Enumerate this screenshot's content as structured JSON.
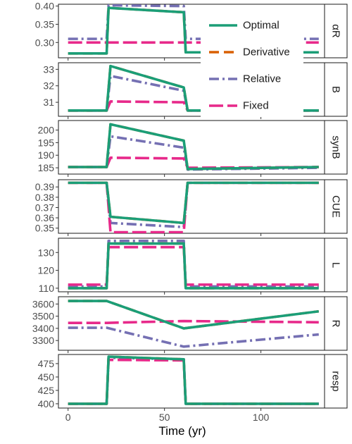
{
  "chart_data": {
    "type": "line",
    "title": "",
    "xlabel": "Time (yr)",
    "xlim": [
      -5,
      133
    ],
    "x_ticks": [
      0,
      50,
      100
    ],
    "x_tick_labels": [
      "0",
      "50",
      "100"
    ],
    "legend": {
      "placement": "inside-top-right",
      "entries": [
        {
          "series": "Optimal",
          "label": "Optimal",
          "color": "#1b9e77",
          "dash": "solid"
        },
        {
          "series": "Derivative",
          "label": "Derivative",
          "color": "#d95f02",
          "dash": "dashed"
        },
        {
          "series": "Relative",
          "label": "Relative",
          "color": "#7570b3",
          "dash": "dotdash"
        },
        {
          "series": "Fixed",
          "label": "Fixed",
          "color": "#e7298a",
          "dash": "longdash"
        }
      ]
    },
    "panels": [
      {
        "strip": "αR",
        "ylim": [
          0.258,
          0.405
        ],
        "y_ticks": [
          0.3,
          0.35,
          0.4
        ],
        "y_tick_labels": [
          "0.30",
          "0.35",
          "0.40"
        ],
        "series": {
          "Optimal": [
            [
              0,
              0.27
            ],
            [
              20,
              0.27
            ],
            [
              21,
              0.395
            ],
            [
              60,
              0.383
            ],
            [
              61,
              0.273
            ],
            [
              130,
              0.273
            ]
          ],
          "Derivative": [
            [
              0,
              0.27
            ],
            [
              20,
              0.27
            ],
            [
              21,
              0.395
            ],
            [
              60,
              0.383
            ],
            [
              61,
              0.273
            ],
            [
              130,
              0.273
            ]
          ],
          "Relative": [
            [
              0,
              0.31
            ],
            [
              20,
              0.31
            ],
            [
              21,
              0.402
            ],
            [
              60,
              0.4
            ],
            [
              61,
              0.31
            ],
            [
              130,
              0.31
            ]
          ],
          "Fixed": [
            [
              0,
              0.3
            ],
            [
              130,
              0.3
            ]
          ]
        }
      },
      {
        "strip": "B",
        "ylim": [
          30.15,
          33.4
        ],
        "y_ticks": [
          31,
          32,
          33
        ],
        "y_tick_labels": [
          "31",
          "32",
          "33"
        ],
        "series": {
          "Optimal": [
            [
              0,
              30.5
            ],
            [
              20,
              30.5
            ],
            [
              22,
              33.2
            ],
            [
              60,
              31.9
            ],
            [
              62,
              30.5
            ],
            [
              130,
              30.5
            ]
          ],
          "Derivative": [
            [
              0,
              30.5
            ],
            [
              20,
              30.5
            ],
            [
              22,
              33.2
            ],
            [
              60,
              31.9
            ],
            [
              62,
              30.5
            ],
            [
              130,
              30.5
            ]
          ],
          "Relative": [
            [
              0,
              30.5
            ],
            [
              20,
              30.5
            ],
            [
              22,
              32.6
            ],
            [
              60,
              31.7
            ],
            [
              62,
              30.5
            ],
            [
              130,
              30.5
            ]
          ],
          "Fixed": [
            [
              0,
              30.5
            ],
            [
              20,
              30.5
            ],
            [
              22,
              31.05
            ],
            [
              60,
              31.0
            ],
            [
              62,
              30.5
            ],
            [
              130,
              30.5
            ]
          ]
        }
      },
      {
        "strip": "synB",
        "ylim": [
          182.5,
          203.8
        ],
        "y_ticks": [
          185,
          190,
          195,
          200
        ],
        "y_tick_labels": [
          "185",
          "190",
          "195",
          "200"
        ],
        "series": {
          "Optimal": [
            [
              0,
              185.3
            ],
            [
              20,
              185.3
            ],
            [
              22,
              202.3
            ],
            [
              60,
              195.8
            ],
            [
              62,
              184.5
            ],
            [
              130,
              185.3
            ]
          ],
          "Derivative": [
            [
              0,
              185.3
            ],
            [
              20,
              185.3
            ],
            [
              22,
              202.3
            ],
            [
              60,
              195.8
            ],
            [
              62,
              184.5
            ],
            [
              130,
              185.3
            ]
          ],
          "Relative": [
            [
              0,
              185.3
            ],
            [
              20,
              185.3
            ],
            [
              22,
              197.5
            ],
            [
              60,
              193.0
            ],
            [
              62,
              184.3
            ],
            [
              130,
              185.0
            ]
          ],
          "Fixed": [
            [
              0,
              185.3
            ],
            [
              20,
              185.3
            ],
            [
              22,
              189.0
            ],
            [
              60,
              188.7
            ],
            [
              62,
              185.0
            ],
            [
              130,
              185.3
            ]
          ]
        }
      },
      {
        "strip": "CUE",
        "ylim": [
          0.345,
          0.397
        ],
        "y_ticks": [
          0.35,
          0.36,
          0.37,
          0.38,
          0.39
        ],
        "y_tick_labels": [
          "0.35",
          "0.36",
          "0.37",
          "0.38",
          "0.39"
        ],
        "series": {
          "Optimal": [
            [
              0,
              0.394
            ],
            [
              20,
              0.394
            ],
            [
              22,
              0.361
            ],
            [
              60,
              0.355
            ],
            [
              62,
              0.394
            ],
            [
              130,
              0.394
            ]
          ],
          "Derivative": [
            [
              0,
              0.394
            ],
            [
              20,
              0.394
            ],
            [
              22,
              0.361
            ],
            [
              60,
              0.355
            ],
            [
              62,
              0.394
            ],
            [
              130,
              0.394
            ]
          ],
          "Relative": [
            [
              0,
              0.394
            ],
            [
              20,
              0.394
            ],
            [
              22,
              0.355
            ],
            [
              60,
              0.351
            ],
            [
              62,
              0.394
            ],
            [
              130,
              0.394
            ]
          ],
          "Fixed": [
            [
              0,
              0.394
            ],
            [
              20,
              0.394
            ],
            [
              22,
              0.346
            ],
            [
              60,
              0.346
            ],
            [
              62,
              0.394
            ],
            [
              130,
              0.394
            ]
          ]
        }
      },
      {
        "strip": "L",
        "ylim": [
          108,
          138
        ],
        "y_ticks": [
          110,
          120,
          130
        ],
        "y_tick_labels": [
          "110",
          "120",
          "130"
        ],
        "series": {
          "Optimal": [
            [
              0,
              110
            ],
            [
              20,
              110
            ],
            [
              21,
              135
            ],
            [
              60,
              135
            ],
            [
              61,
              110
            ],
            [
              130,
              110
            ]
          ],
          "Derivative": [
            [
              0,
              110
            ],
            [
              20,
              110
            ],
            [
              21,
              135
            ],
            [
              60,
              135
            ],
            [
              61,
              110
            ],
            [
              130,
              110
            ]
          ],
          "Relative": [
            [
              0,
              111
            ],
            [
              20,
              111
            ],
            [
              21,
              136.5
            ],
            [
              60,
              136.5
            ],
            [
              61,
              111
            ],
            [
              130,
              111
            ]
          ],
          "Fixed": [
            [
              0,
              112
            ],
            [
              20,
              112
            ],
            [
              21,
              133
            ],
            [
              60,
              133
            ],
            [
              61,
              112
            ],
            [
              130,
              112
            ]
          ]
        }
      },
      {
        "strip": "R",
        "ylim": [
          3220,
          3660
        ],
        "y_ticks": [
          3300,
          3400,
          3500,
          3600
        ],
        "y_tick_labels": [
          "3300",
          "3400",
          "3500",
          "3600"
        ],
        "series": {
          "Optimal": [
            [
              0,
              3625
            ],
            [
              20,
              3625
            ],
            [
              60,
              3400
            ],
            [
              130,
              3540
            ]
          ],
          "Derivative": [
            [
              0,
              3625
            ],
            [
              20,
              3625
            ],
            [
              60,
              3400
            ],
            [
              130,
              3540
            ]
          ],
          "Relative": [
            [
              0,
              3405
            ],
            [
              20,
              3405
            ],
            [
              60,
              3250
            ],
            [
              130,
              3350
            ]
          ],
          "Fixed": [
            [
              0,
              3445
            ],
            [
              20,
              3445
            ],
            [
              60,
              3460
            ],
            [
              130,
              3450
            ]
          ]
        }
      },
      {
        "strip": "resp",
        "ylim": [
          392,
          492
        ],
        "y_ticks": [
          400,
          425,
          450,
          475
        ],
        "y_tick_labels": [
          "400",
          "425",
          "450",
          "475"
        ],
        "series": {
          "Optimal": [
            [
              0,
              400
            ],
            [
              20,
              400
            ],
            [
              21,
              488
            ],
            [
              60,
              483
            ],
            [
              61,
              400
            ],
            [
              130,
              400
            ]
          ],
          "Derivative": [
            [
              0,
              400
            ],
            [
              20,
              400
            ],
            [
              21,
              488
            ],
            [
              60,
              483
            ],
            [
              61,
              400
            ],
            [
              130,
              400
            ]
          ],
          "Relative": [
            [
              0,
              400
            ],
            [
              20,
              400
            ],
            [
              21,
              486
            ],
            [
              60,
              483
            ],
            [
              61,
              400
            ],
            [
              130,
              400
            ]
          ],
          "Fixed": [
            [
              0,
              400
            ],
            [
              20,
              400
            ],
            [
              21,
              482
            ],
            [
              60,
              481
            ],
            [
              61,
              400
            ],
            [
              130,
              400
            ]
          ]
        }
      }
    ]
  }
}
